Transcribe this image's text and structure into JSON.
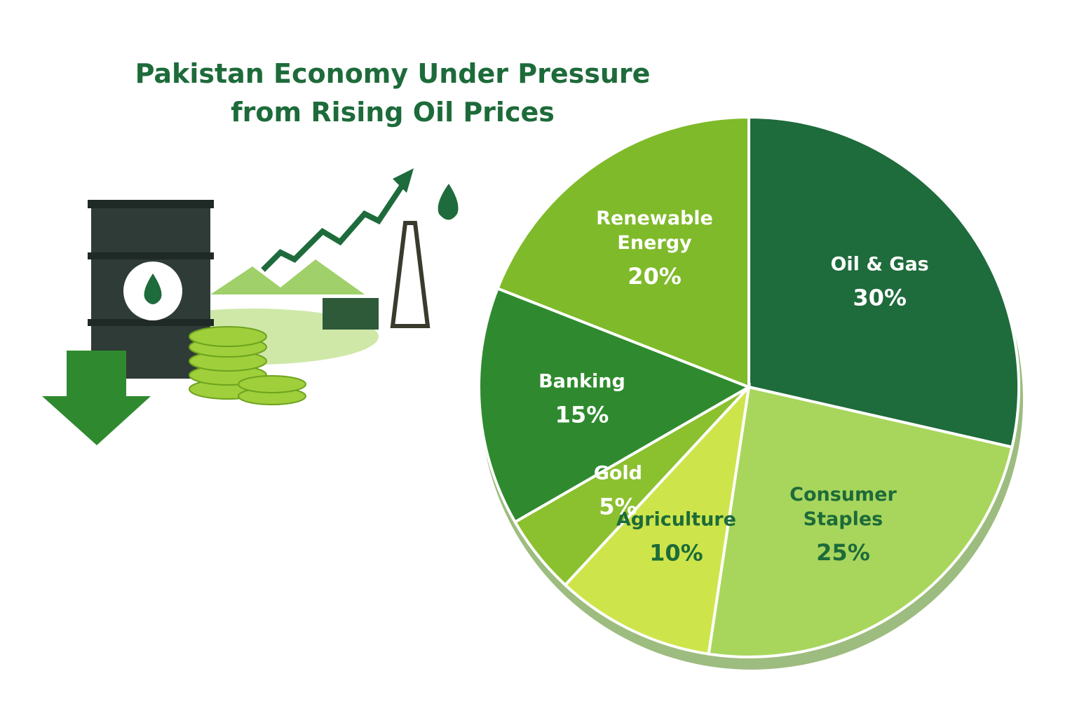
{
  "chart_data": {
    "type": "pie",
    "title": "Pakistan Economy Under Pressure from Rising Oil Prices",
    "categories": [
      "Oil & Gas",
      "Consumer Staples",
      "Agriculture",
      "Gold",
      "Banking",
      "Renewable Energy"
    ],
    "values": [
      30,
      25,
      10,
      5,
      15,
      20
    ],
    "value_labels": [
      "30%",
      "25%",
      "10%",
      "5%",
      "15%",
      "20%"
    ],
    "colors": [
      "#1e6b3c",
      "#a8d65c",
      "#cde54a",
      "#8bc02e",
      "#2f8a2f",
      "#7fba2a"
    ]
  }
}
